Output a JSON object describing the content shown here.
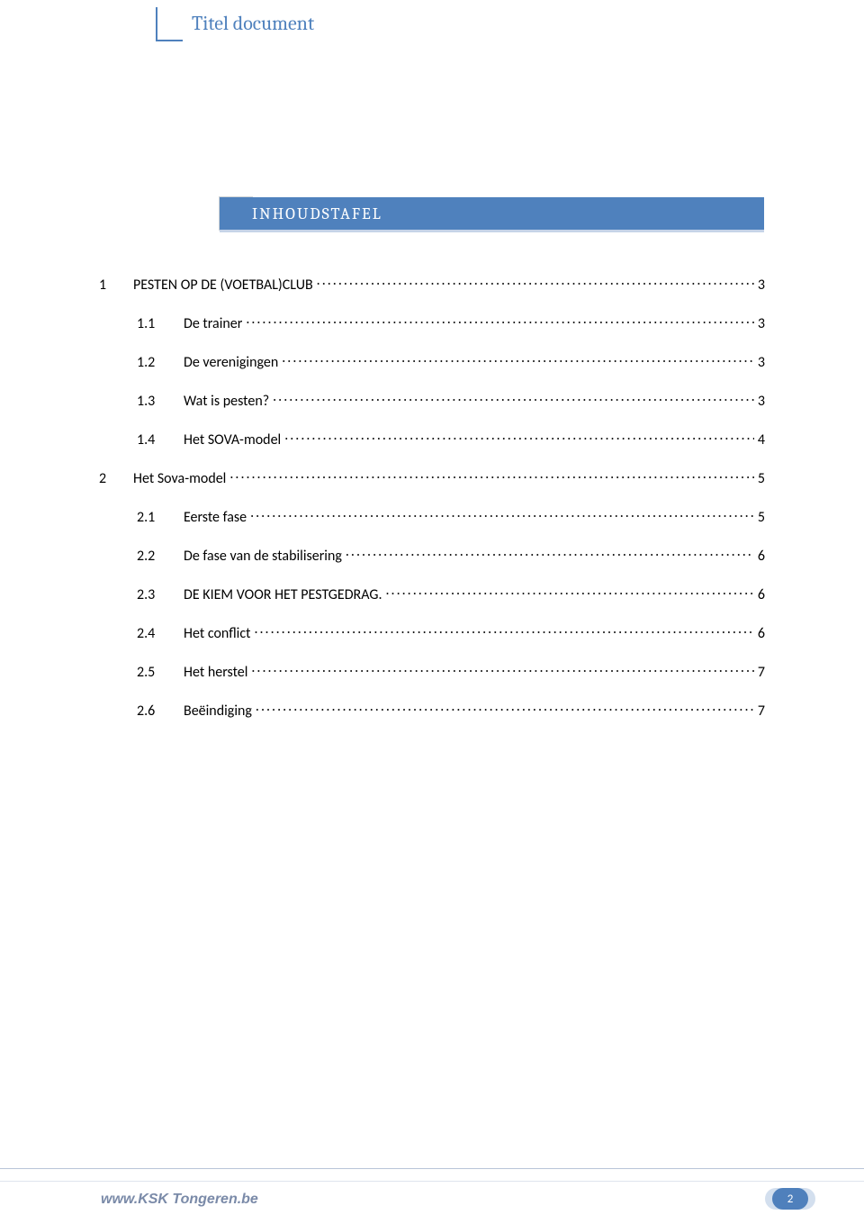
{
  "header": {
    "title": "Titel document",
    "accent_color": "#4f81bd"
  },
  "banner": {
    "text": "INHOUDSTAFEL",
    "bg_color": "#4f81bd",
    "text_color": "#ffffff"
  },
  "toc": {
    "entries": [
      {
        "level": 1,
        "num": "1",
        "title": "PESTEN OP DE (VOETBAL)CLUB",
        "page": "3"
      },
      {
        "level": 2,
        "num": "1.1",
        "title": "De trainer",
        "page": "3"
      },
      {
        "level": 2,
        "num": "1.2",
        "title": "De verenigingen",
        "page": "3"
      },
      {
        "level": 2,
        "num": "1.3",
        "title": "Wat is pesten?",
        "page": "3"
      },
      {
        "level": 2,
        "num": "1.4",
        "title": "Het SOVA-model",
        "page": "4"
      },
      {
        "level": 1,
        "num": "2",
        "title": "Het Sova-model",
        "page": "5"
      },
      {
        "level": 2,
        "num": "2.1",
        "title": "Eerste fase",
        "page": "5"
      },
      {
        "level": 2,
        "num": "2.2",
        "title": "De fase van de stabilisering",
        "page": "6"
      },
      {
        "level": 2,
        "num": "2.3",
        "title": "DE KIEM VOOR HET PESTGEDRAG.",
        "page": "6"
      },
      {
        "level": 2,
        "num": "2.4",
        "title": "Het conflict",
        "page": "6"
      },
      {
        "level": 2,
        "num": "2.5",
        "title": "Het herstel",
        "page": "7"
      },
      {
        "level": 2,
        "num": "2.6",
        "title": "Beëindiging",
        "page": "7"
      }
    ]
  },
  "footer": {
    "url": "www.KSK Tongeren.be",
    "page_number": "2",
    "badge_color": "#4f81bd"
  }
}
